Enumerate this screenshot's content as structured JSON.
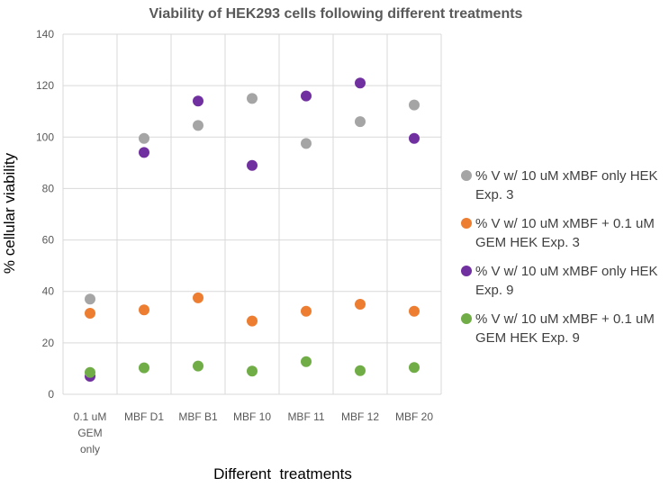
{
  "chart_data": {
    "type": "scatter",
    "title": "Viability of HEK293 cells following different treatments",
    "xlabel": "Different  treatments",
    "ylabel": "% cellular viability",
    "ylim": [
      0,
      140
    ],
    "y_ticks": [
      0,
      20,
      40,
      60,
      80,
      100,
      120,
      140
    ],
    "categories": [
      [
        "0.1 uM",
        "GEM",
        "only"
      ],
      [
        "MBF D1"
      ],
      [
        "MBF B1"
      ],
      [
        "MBF 10"
      ],
      [
        "MBF 11"
      ],
      [
        "MBF 12"
      ],
      [
        "MBF 20"
      ]
    ],
    "grid": true,
    "legend_position": "right",
    "series": [
      {
        "name": "% V w/ 10 uM xMBF only HEK Exp. 3",
        "legend_lines": [
          "% V w/ 10 uM xMBF only HEK",
          "Exp. 3"
        ],
        "color": "#a5a5a5",
        "values": [
          37,
          99.5,
          104.5,
          115,
          97.5,
          106,
          112.5
        ]
      },
      {
        "name": "% V w/ 10 uM xMBF + 0.1 uM GEM HEK Exp. 3",
        "legend_lines": [
          "% V w/ 10 uM xMBF + 0.1 uM",
          "GEM HEK Exp. 3"
        ],
        "color": "#ed7d31",
        "values": [
          31.5,
          32.8,
          37.5,
          28.5,
          32.3,
          35,
          32.3
        ]
      },
      {
        "name": "% V w/ 10 uM xMBF only HEK Exp. 9",
        "legend_lines": [
          "% V w/ 10 uM xMBF only HEK",
          "Exp. 9"
        ],
        "color": "#7030a0",
        "values": [
          7,
          94,
          114,
          89,
          116,
          121,
          99.5
        ]
      },
      {
        "name": "% V w/ 10 uM xMBF + 0.1 uM GEM HEK Exp. 9",
        "legend_lines": [
          "% V w/ 10 uM xMBF + 0.1 uM",
          "GEM HEK Exp. 9"
        ],
        "color": "#70ad47",
        "values": [
          8.5,
          10.3,
          11,
          9,
          12.7,
          9.2,
          10.4
        ]
      }
    ]
  }
}
